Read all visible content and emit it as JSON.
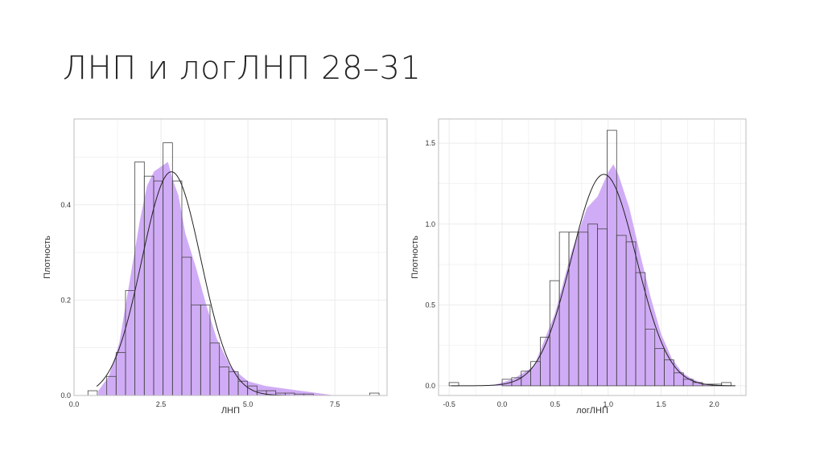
{
  "slide": {
    "title": "ЛНП и логЛНП 28–31"
  },
  "colors": {
    "fill": "#cfa8f5",
    "bars": "#444444",
    "curve": "#222222",
    "grid": "#ebebeb",
    "frame": "#bdbdbd"
  },
  "chart_data": [
    {
      "type": "histogram",
      "xlabel": "ЛНП",
      "ylabel": "Плотность",
      "xlim": [
        0,
        9
      ],
      "ylim": [
        0,
        0.58
      ],
      "xticks": [
        0.0,
        2.5,
        5.0,
        7.5
      ],
      "xtick_labels": [
        "0.0",
        "2.5",
        "5.0",
        "7.5"
      ],
      "yticks": [
        0.0,
        0.2,
        0.4
      ],
      "ytick_labels": [
        "0.0",
        "0.2",
        "0.4"
      ],
      "bin_width": 0.27,
      "bins_start": [
        0.4,
        0.94,
        1.21,
        1.48,
        1.75,
        2.02,
        2.29,
        2.56,
        2.83,
        3.1,
        3.37,
        3.64,
        3.91,
        4.18,
        4.45,
        4.72,
        4.99,
        5.26,
        5.53,
        5.8,
        6.07,
        6.34,
        6.61,
        8.5
      ],
      "bars": [
        0.01,
        0.04,
        0.09,
        0.22,
        0.49,
        0.46,
        0.45,
        0.53,
        0.45,
        0.29,
        0.19,
        0.19,
        0.11,
        0.06,
        0.05,
        0.03,
        0.02,
        0.01,
        0.01,
        0.005,
        0.005,
        0.003,
        0.003,
        0.005
      ],
      "density": {
        "x": [
          0.7,
          1.0,
          1.3,
          1.6,
          1.9,
          2.1,
          2.3,
          2.5,
          2.7,
          2.85,
          3.0,
          3.2,
          3.5,
          3.8,
          4.1,
          4.5,
          5.0,
          5.5,
          6.0,
          6.5,
          7.0,
          7.5
        ],
        "y": [
          0.01,
          0.04,
          0.11,
          0.24,
          0.37,
          0.44,
          0.47,
          0.48,
          0.49,
          0.45,
          0.42,
          0.34,
          0.27,
          0.19,
          0.12,
          0.06,
          0.03,
          0.02,
          0.015,
          0.01,
          0.005,
          0.0
        ]
      },
      "normal_fit": {
        "mean": 2.8,
        "sd": 0.85,
        "x_range": [
          0.65,
          6.2
        ]
      }
    },
    {
      "type": "histogram",
      "xlabel": "логЛНП",
      "ylabel": "Плотность",
      "xlim": [
        -0.6,
        2.3
      ],
      "ylim": [
        -0.06,
        1.65
      ],
      "xticks": [
        -0.5,
        0.0,
        0.5,
        1.0,
        1.5,
        2.0
      ],
      "xtick_labels": [
        "-0.5",
        "0.0",
        "0.5",
        "1.0",
        "1.5",
        "2.0"
      ],
      "yticks": [
        0.0,
        0.5,
        1.0,
        1.5
      ],
      "ytick_labels": [
        "0.0",
        "0.5",
        "1.0",
        "1.5"
      ],
      "bin_width": 0.09,
      "bins_start": [
        -0.5,
        0.0,
        0.09,
        0.18,
        0.27,
        0.36,
        0.45,
        0.54,
        0.63,
        0.72,
        0.81,
        0.9,
        0.99,
        1.08,
        1.17,
        1.26,
        1.35,
        1.44,
        1.53,
        1.62,
        1.71,
        1.8,
        1.89,
        1.98,
        2.07
      ],
      "bars": [
        0.02,
        0.04,
        0.05,
        0.09,
        0.15,
        0.3,
        0.65,
        0.95,
        0.95,
        0.95,
        1.0,
        0.97,
        1.58,
        0.93,
        0.89,
        0.7,
        0.35,
        0.23,
        0.16,
        0.08,
        0.04,
        0.02,
        0.01,
        0.01,
        0.02
      ],
      "density": {
        "x": [
          -0.1,
          0.1,
          0.3,
          0.5,
          0.65,
          0.8,
          0.9,
          1.0,
          1.05,
          1.1,
          1.2,
          1.3,
          1.4,
          1.5,
          1.6,
          1.7,
          1.8,
          1.9,
          2.0
        ],
        "y": [
          0.0,
          0.04,
          0.12,
          0.45,
          0.82,
          1.1,
          1.17,
          1.32,
          1.37,
          1.3,
          1.1,
          0.82,
          0.55,
          0.32,
          0.17,
          0.08,
          0.04,
          0.015,
          0.0
        ]
      },
      "normal_fit": {
        "mean": 0.96,
        "sd": 0.305,
        "x_range": [
          -0.48,
          2.2
        ]
      }
    }
  ]
}
